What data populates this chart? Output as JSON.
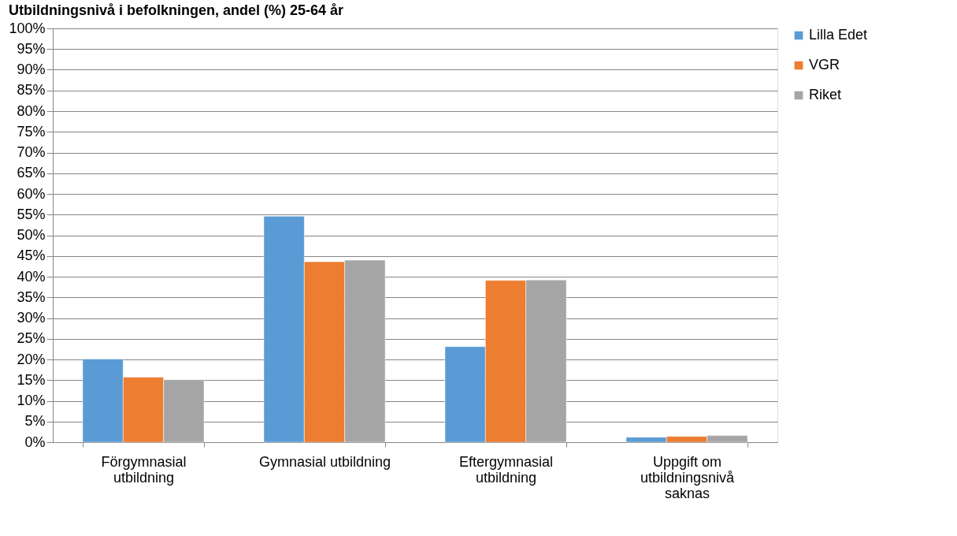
{
  "chart_data": {
    "type": "bar",
    "title": "Utbildningsnivå i befolkningen, andel (%) 25-64 år",
    "categories": [
      "Förgymnasial utbildning",
      "Gymnasial utbildning",
      "Eftergymnasial utbildning",
      "Uppgift om utbildningsnivå saknas"
    ],
    "series": [
      {
        "name": "Lilla Edet",
        "color": "#5b9bd5",
        "values": [
          20.1,
          54.6,
          23.1,
          1.2
        ]
      },
      {
        "name": "VGR",
        "color": "#ed7d31",
        "values": [
          15.7,
          43.6,
          39.1,
          1.4
        ]
      },
      {
        "name": "Riket",
        "color": "#a5a5a5",
        "values": [
          15.1,
          44.0,
          39.2,
          1.6
        ]
      }
    ],
    "ylim": [
      0,
      100
    ],
    "yticks": [
      {
        "value": 0,
        "label": "0%"
      },
      {
        "value": 5,
        "label": "5%"
      },
      {
        "value": 10,
        "label": "10%"
      },
      {
        "value": 15,
        "label": "15%"
      },
      {
        "value": 20,
        "label": "20%"
      },
      {
        "value": 25,
        "label": "25%"
      },
      {
        "value": 30,
        "label": "30%"
      },
      {
        "value": 35,
        "label": "35%"
      },
      {
        "value": 40,
        "label": "40%"
      },
      {
        "value": 45,
        "label": "45%"
      },
      {
        "value": 50,
        "label": "50%"
      },
      {
        "value": 55,
        "label": "55%"
      },
      {
        "value": 60,
        "label": "60%"
      },
      {
        "value": 65,
        "label": "65%"
      },
      {
        "value": 70,
        "label": "70%"
      },
      {
        "value": 75,
        "label": "75%"
      },
      {
        "value": 80,
        "label": "80%"
      },
      {
        "value": 85,
        "label": "85%"
      },
      {
        "value": 90,
        "label": "90%"
      },
      {
        "value": 95,
        "label": "95%"
      },
      {
        "value": 100,
        "label": "100%"
      }
    ],
    "grid": "y",
    "legend": "right"
  }
}
